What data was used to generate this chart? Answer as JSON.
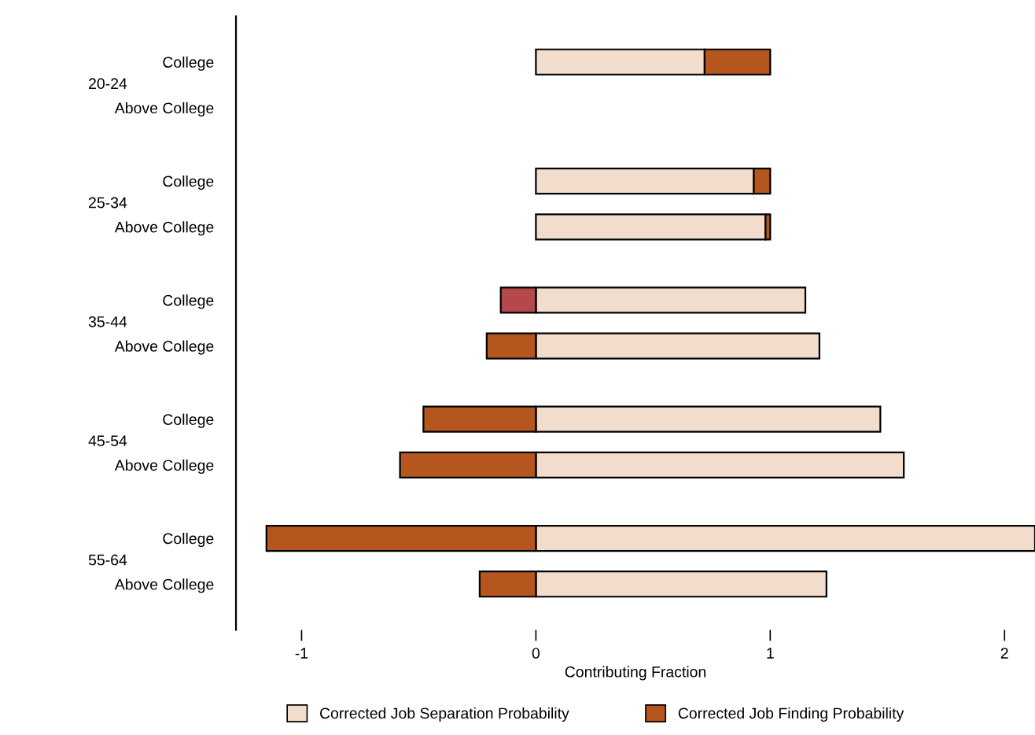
{
  "chart_data": {
    "type": "bar",
    "orientation": "horizontal",
    "stacked": true,
    "categories": [
      "College",
      "Above College",
      "College",
      "Above College",
      "College",
      "Above College",
      "College",
      "Above College",
      "College",
      "Above College"
    ],
    "annotations": [
      "20-24",
      "25-34",
      "35-44",
      "45-54",
      "55-64"
    ],
    "series": [
      {
        "name": "Corrected Job Separation Probability",
        "color": "#f2dccb",
        "values": [
          0.72,
          null,
          0.93,
          0.98,
          1.15,
          1.21,
          1.47,
          1.57,
          2.13,
          1.24
        ]
      },
      {
        "name": "Corrected Job Finding Probability",
        "color": "#b5561f",
        "colors": [
          "#b5561f",
          "#b5561f",
          "#b5561f",
          "#b5561f",
          "#b5484a",
          "#b5561f",
          "#b5561f",
          "#b5561f",
          "#b5561f",
          "#b5561f"
        ],
        "values": [
          0.28,
          null,
          0.07,
          0.02,
          -0.15,
          -0.21,
          -0.48,
          -0.58,
          -1.15,
          -0.24
        ]
      }
    ],
    "xlabel": "Contributing Fraction",
    "xlim": [
      -1.28,
      2.13
    ],
    "xticks": [
      -1,
      0,
      1,
      2
    ],
    "grid": false,
    "legend": "bottom"
  }
}
